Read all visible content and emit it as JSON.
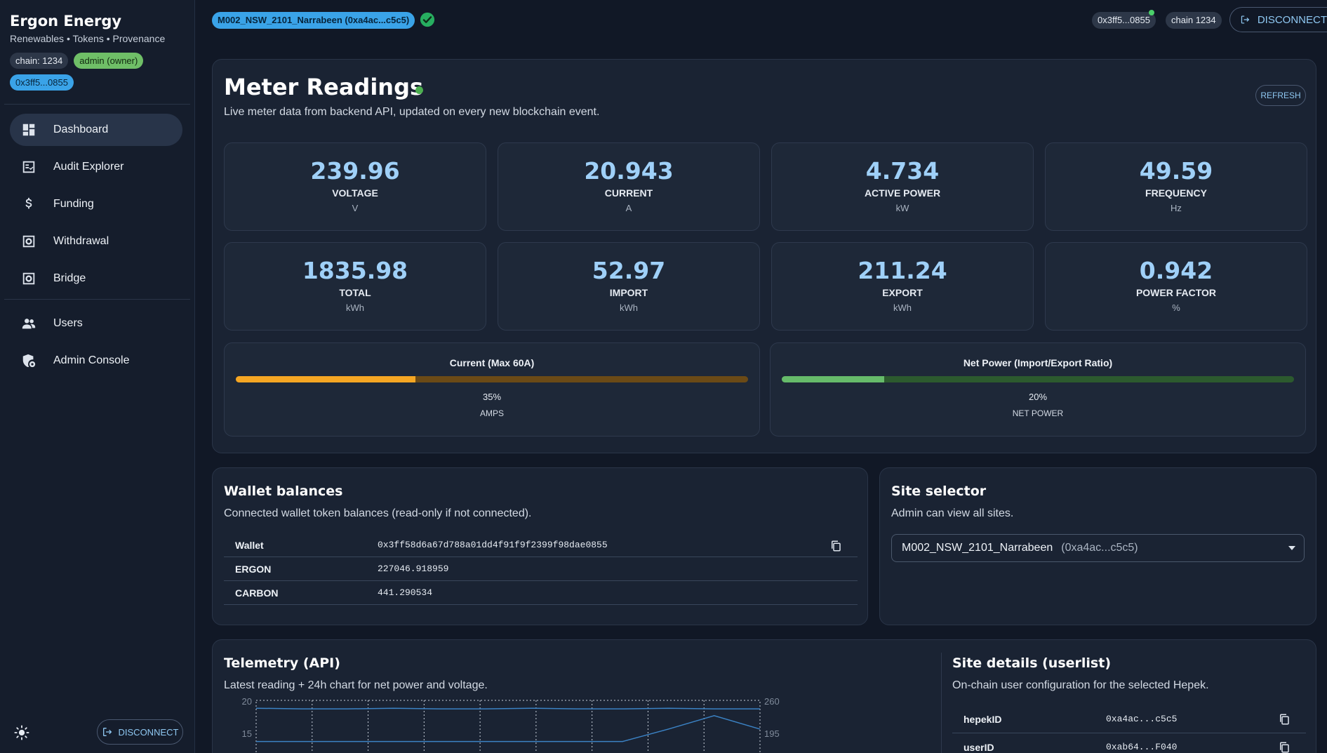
{
  "sidebar": {
    "brand_title": "Ergon Energy",
    "brand_subtitle": "Renewables • Tokens • Provenance",
    "chips": {
      "chain": "chain: 1234",
      "role": "admin (owner)",
      "address": "0x3ff5...0855"
    },
    "items": [
      {
        "label": "Dashboard",
        "icon": "dashboard-icon",
        "active": true
      },
      {
        "label": "Audit Explorer",
        "icon": "audit-icon"
      },
      {
        "label": "Funding",
        "icon": "dollar-icon"
      },
      {
        "label": "Withdrawal",
        "icon": "withdrawal-icon"
      },
      {
        "label": "Bridge",
        "icon": "bridge-icon"
      },
      {
        "label": "Users",
        "icon": "users-icon"
      },
      {
        "label": "Admin Console",
        "icon": "admin-shield-icon"
      }
    ],
    "disconnect_label": "DISCONNECT",
    "theme_icon": "sun-icon"
  },
  "topbar": {
    "site_pill": "M002_NSW_2101_Narrabeen (0xa4ac...c5c5)",
    "address_chip": "0x3ff5...0855",
    "chain_chip": "chain 1234",
    "disconnect_label": "DISCONNECT",
    "colors": {
      "pill": "#3aa3e8",
      "ok": "#27ae60"
    }
  },
  "meter": {
    "title": "Meter Readings",
    "description": "Live meter data from backend API, updated on every new blockchain event.",
    "refresh_label": "REFRESH",
    "tiles": [
      {
        "value": "239.96",
        "label": "VOLTAGE",
        "unit": "V"
      },
      {
        "value": "20.943",
        "label": "CURRENT",
        "unit": "A"
      },
      {
        "value": "4.734",
        "label": "ACTIVE POWER",
        "unit": "kW"
      },
      {
        "value": "49.59",
        "label": "FREQUENCY",
        "unit": "Hz"
      },
      {
        "value": "1835.98",
        "label": "TOTAL",
        "unit": "kWh"
      },
      {
        "value": "52.97",
        "label": "IMPORT",
        "unit": "kWh"
      },
      {
        "value": "211.24",
        "label": "EXPORT",
        "unit": "kWh"
      },
      {
        "value": "0.942",
        "label": "POWER FACTOR",
        "unit": "%"
      }
    ],
    "gauges": [
      {
        "title": "Current (Max 60A)",
        "percent": 35,
        "percent_label": "35%",
        "sub": "AMPS",
        "fill": "#f5a623",
        "track": "#6b4a16"
      },
      {
        "title": "Net Power (Import/Export Ratio)",
        "percent": 20,
        "percent_label": "20%",
        "sub": "NET POWER",
        "fill": "#66bb6a",
        "track": "#2c5a2e"
      }
    ]
  },
  "wallet": {
    "title": "Wallet balances",
    "description": "Connected wallet token balances (read-only if not connected).",
    "rows": [
      {
        "key": "Wallet",
        "value": "0x3ff58d6a67d788a01dd4f91f9f2399f98dae0855"
      },
      {
        "key": "ERGON",
        "value": "227046.918959"
      },
      {
        "key": "CARBON",
        "value": "441.290534"
      }
    ]
  },
  "site_selector": {
    "title": "Site selector",
    "description": "Admin can view all sites.",
    "selected_name": "M002_NSW_2101_Narrabeen",
    "selected_addr": "(0xa4ac...c5c5)"
  },
  "telemetry": {
    "title": "Telemetry (API)",
    "description": "Latest reading + 24h chart for net power and voltage."
  },
  "chart_data": {
    "type": "line",
    "title": "",
    "y_left_ticks": [
      "20",
      "15"
    ],
    "y_right_ticks": [
      "260",
      "195"
    ],
    "series": [
      {
        "values": [
          19,
          18.9,
          18.9,
          19,
          18.9,
          18.9,
          19,
          18.9,
          18.9,
          19,
          18.9,
          18.9
        ],
        "color": "#3b82c4"
      },
      {
        "values": [
          180,
          180,
          180,
          180,
          180,
          180,
          180,
          180,
          180,
          205,
          232,
          205
        ],
        "color": "#3b82c4"
      }
    ]
  },
  "site_details": {
    "title": "Site details (userlist)",
    "description": "On-chain user configuration for the selected Hepek.",
    "rows": [
      {
        "key": "hepekID",
        "value": "0xa4ac...c5c5"
      },
      {
        "key": "userID",
        "value": "0xab64...F040"
      }
    ]
  }
}
